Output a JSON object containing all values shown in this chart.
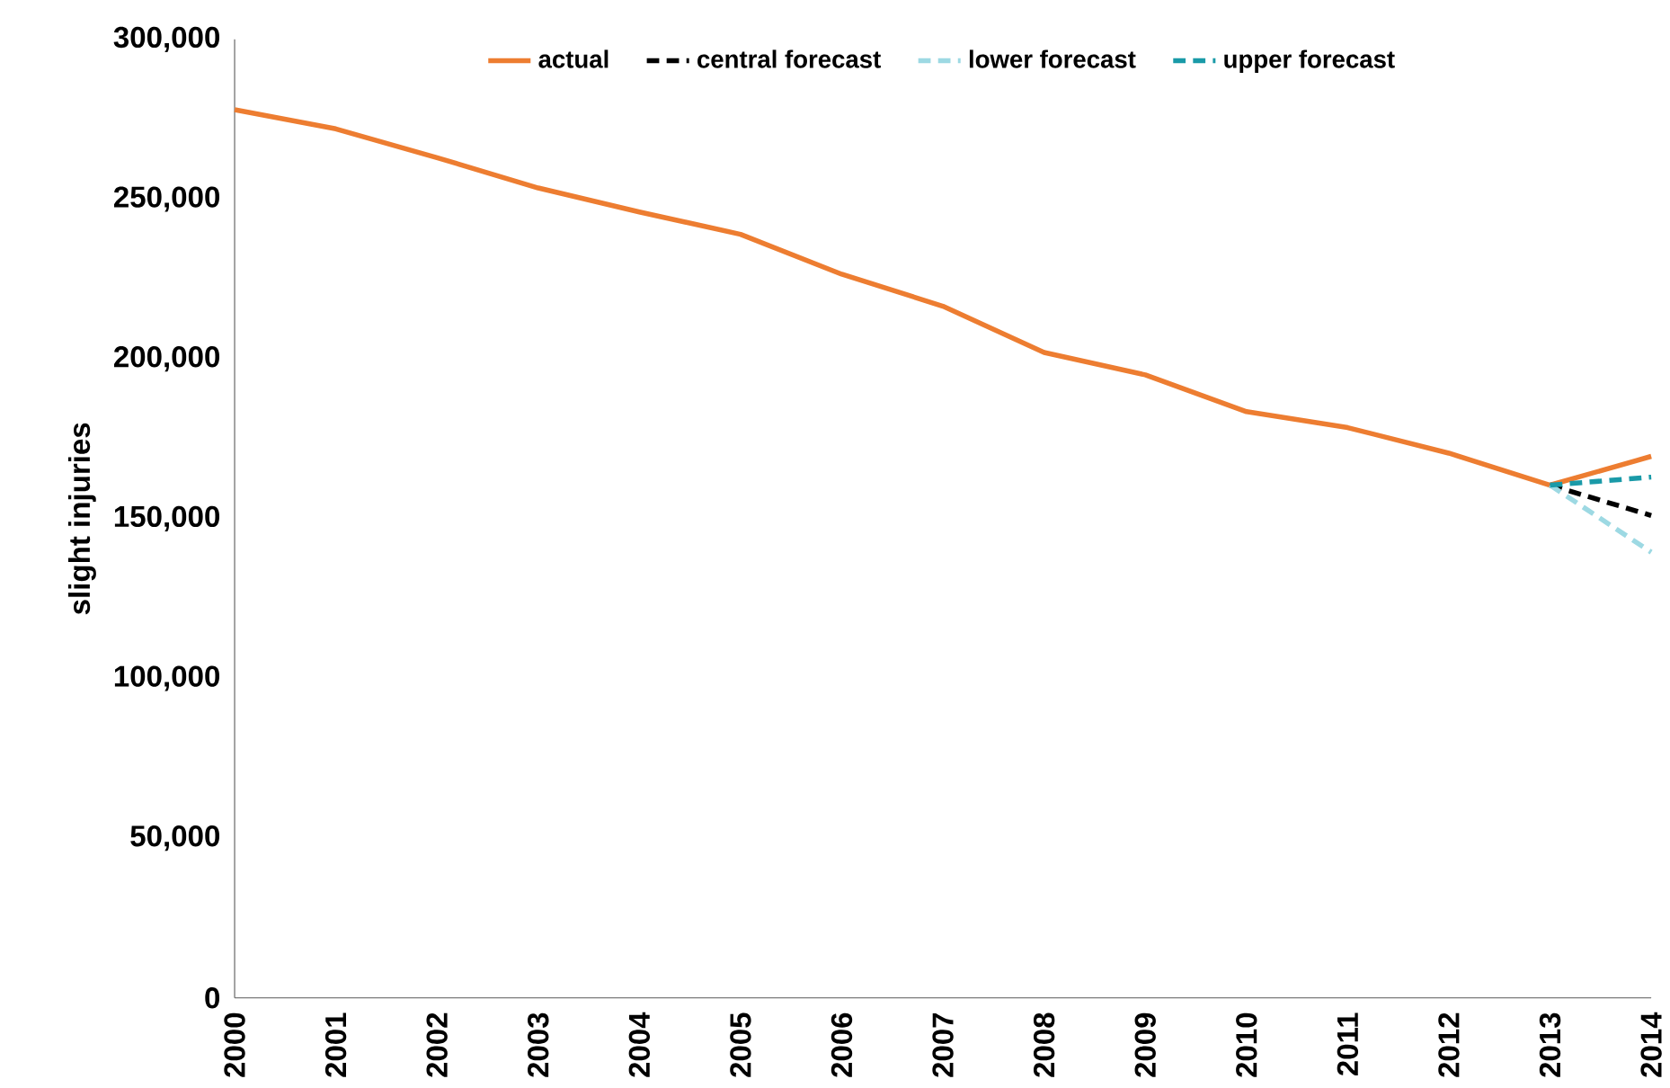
{
  "chart_data": {
    "type": "line",
    "ylabel": "slight injuries",
    "categories": [
      "2000",
      "2001",
      "2002",
      "2003",
      "2004",
      "2005",
      "2006",
      "2007",
      "2008",
      "2009",
      "2010",
      "2011",
      "2012",
      "2013",
      "2014"
    ],
    "series": [
      {
        "name": "actual",
        "color": "#ed7d31",
        "line_style": "solid",
        "values": [
          278000,
          272000,
          263000,
          253500,
          246000,
          239000,
          226500,
          216500,
          202000,
          195000,
          183500,
          178500,
          170500,
          160500,
          169500
        ]
      },
      {
        "name": "central forecast",
        "color": "#000000",
        "line_style": "dashed",
        "values": [
          null,
          null,
          null,
          null,
          null,
          null,
          null,
          null,
          null,
          null,
          null,
          null,
          null,
          160500,
          151000
        ]
      },
      {
        "name": "lower forecast",
        "color": "#9dd9e3",
        "line_style": "dashed",
        "values": [
          null,
          null,
          null,
          null,
          null,
          null,
          null,
          null,
          null,
          null,
          null,
          null,
          null,
          160500,
          139500
        ]
      },
      {
        "name": "upper forecast",
        "color": "#1a9aa8",
        "line_style": "dashed",
        "values": [
          null,
          null,
          null,
          null,
          null,
          null,
          null,
          null,
          null,
          null,
          null,
          null,
          null,
          160500,
          163000
        ]
      }
    ],
    "ylim": [
      0,
      300000
    ],
    "yticks": [
      {
        "value": 0,
        "label": "0"
      },
      {
        "value": 50000,
        "label": "50,000"
      },
      {
        "value": 100000,
        "label": "100,000"
      },
      {
        "value": 150000,
        "label": "150,000"
      },
      {
        "value": 200000,
        "label": "200,000"
      },
      {
        "value": 250000,
        "label": "250,000"
      },
      {
        "value": 300000,
        "label": "300,000"
      }
    ],
    "grid": false,
    "legend": "top",
    "marker": "none"
  }
}
